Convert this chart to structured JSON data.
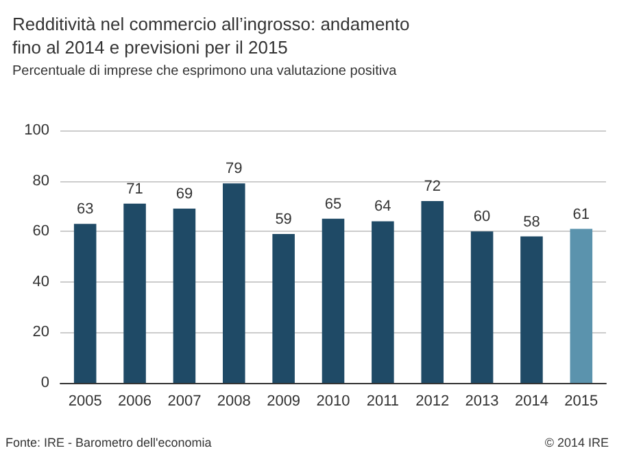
{
  "chart_data": {
    "type": "bar",
    "title": "Redditività nel commercio all’ingrosso: andamento fino al 2014 e previsioni per il 2015",
    "subtitle": "Percentuale di imprese che esprimono una valutazione positiva",
    "categories": [
      "2005",
      "2006",
      "2007",
      "2008",
      "2009",
      "2010",
      "2011",
      "2012",
      "2013",
      "2014",
      "2015"
    ],
    "values": [
      63,
      71,
      69,
      79,
      59,
      65,
      64,
      72,
      60,
      58,
      61
    ],
    "colors": [
      "#1f4a66",
      "#1f4a66",
      "#1f4a66",
      "#1f4a66",
      "#1f4a66",
      "#1f4a66",
      "#1f4a66",
      "#1f4a66",
      "#1f4a66",
      "#1f4a66",
      "#5b93ad"
    ],
    "ylim": [
      0,
      100
    ],
    "yticks": [
      0,
      20,
      40,
      60,
      80,
      100
    ],
    "grid": "y",
    "data_labels": true,
    "annotations": [
      "Fonte: IRE - Barometro dell'economia",
      "© 2014 IRE"
    ]
  }
}
